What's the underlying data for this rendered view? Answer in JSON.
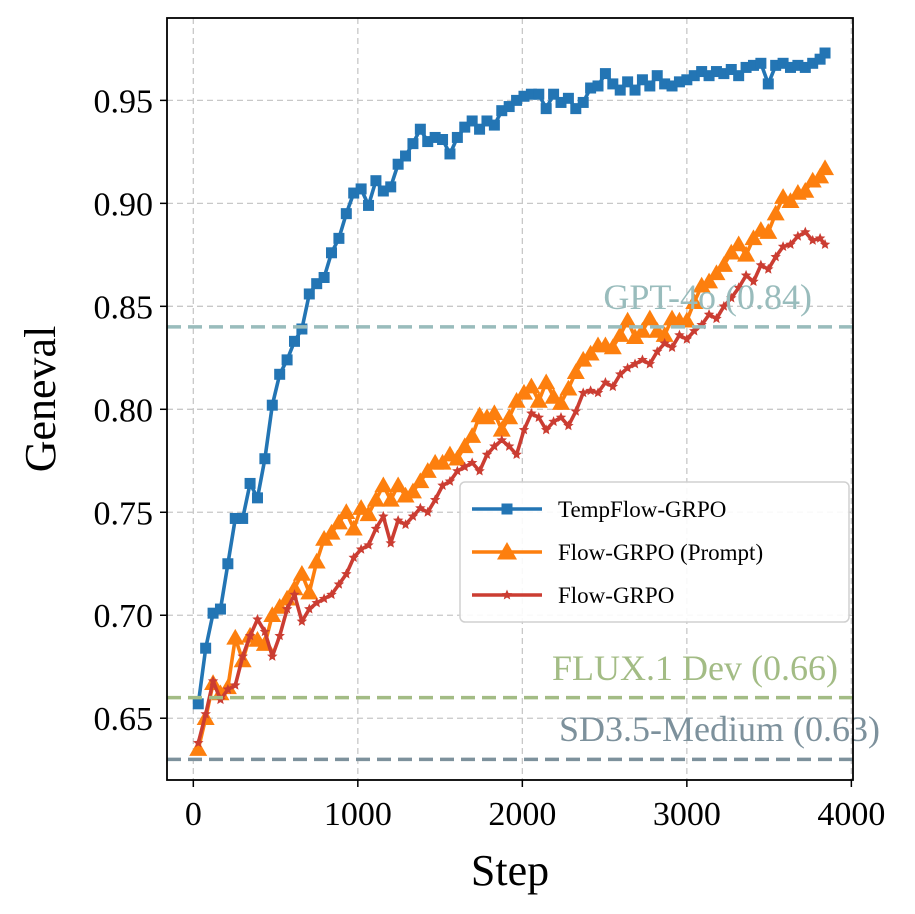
{
  "chart_data": {
    "type": "line",
    "title": "",
    "xlabel": "Step",
    "ylabel": "Geneval",
    "xlim": [
      -160,
      4010
    ],
    "ylim": [
      0.62,
      0.99
    ],
    "xticks": [
      0,
      1000,
      2000,
      3000,
      4000
    ],
    "xtick_labels": [
      "0",
      "1000",
      "2000",
      "3000",
      "4000"
    ],
    "yticks": [
      0.65,
      0.7,
      0.75,
      0.8,
      0.85,
      0.9,
      0.95
    ],
    "ytick_labels": [
      "0.65",
      "0.70",
      "0.75",
      "0.80",
      "0.85",
      "0.90",
      "0.95"
    ],
    "grid": true,
    "legend_position": "center-right",
    "reference_lines": [
      {
        "label": "GPT-4o (0.84)",
        "value": 0.84,
        "color": "#99bcbc"
      },
      {
        "label": "FLUX.1 Dev (0.66)",
        "value": 0.66,
        "color": "#a3bc85"
      },
      {
        "label": "SD3.5-Medium (0.63)",
        "value": 0.63,
        "color": "#7d919c"
      }
    ],
    "series": [
      {
        "name": "TempFlow-GRPO",
        "color": "#2375b4",
        "marker": "square",
        "x": [
          30,
          75,
          120,
          165,
          210,
          255,
          300,
          345,
          390,
          435,
          480,
          525,
          570,
          615,
          660,
          705,
          750,
          795,
          840,
          885,
          930,
          975,
          1020,
          1065,
          1110,
          1155,
          1200,
          1245,
          1290,
          1335,
          1380,
          1425,
          1470,
          1515,
          1560,
          1605,
          1650,
          1695,
          1740,
          1785,
          1830,
          1875,
          1920,
          1965,
          2010,
          2055,
          2100,
          2145,
          2190,
          2235,
          2280,
          2325,
          2370,
          2415,
          2460,
          2505,
          2550,
          2595,
          2640,
          2685,
          2730,
          2775,
          2820,
          2865,
          2910,
          2955,
          3000,
          3045,
          3090,
          3135,
          3180,
          3225,
          3270,
          3315,
          3360,
          3405,
          3450,
          3495,
          3540,
          3585,
          3630,
          3675,
          3720,
          3765,
          3810,
          3840
        ],
        "values": [
          0.657,
          0.684,
          0.701,
          0.703,
          0.725,
          0.747,
          0.747,
          0.764,
          0.757,
          0.776,
          0.802,
          0.817,
          0.824,
          0.833,
          0.839,
          0.856,
          0.861,
          0.864,
          0.876,
          0.883,
          0.895,
          0.905,
          0.907,
          0.899,
          0.911,
          0.906,
          0.908,
          0.919,
          0.923,
          0.929,
          0.936,
          0.93,
          0.932,
          0.931,
          0.924,
          0.932,
          0.937,
          0.94,
          0.936,
          0.94,
          0.938,
          0.945,
          0.947,
          0.95,
          0.952,
          0.953,
          0.953,
          0.946,
          0.953,
          0.949,
          0.951,
          0.946,
          0.949,
          0.956,
          0.957,
          0.963,
          0.958,
          0.955,
          0.959,
          0.955,
          0.96,
          0.957,
          0.962,
          0.958,
          0.957,
          0.959,
          0.96,
          0.962,
          0.964,
          0.962,
          0.964,
          0.963,
          0.965,
          0.962,
          0.966,
          0.967,
          0.968,
          0.958,
          0.967,
          0.968,
          0.966,
          0.967,
          0.966,
          0.968,
          0.97,
          0.973
        ]
      },
      {
        "name": "Flow-GRPO (Prompt)",
        "color": "#fd7f0e",
        "marker": "triangle",
        "x": [
          30,
          75,
          120,
          165,
          210,
          255,
          300,
          345,
          390,
          435,
          480,
          525,
          570,
          615,
          660,
          705,
          750,
          795,
          840,
          885,
          930,
          975,
          1020,
          1065,
          1110,
          1155,
          1200,
          1245,
          1290,
          1335,
          1380,
          1425,
          1470,
          1515,
          1560,
          1605,
          1650,
          1695,
          1740,
          1785,
          1830,
          1875,
          1920,
          1965,
          2010,
          2055,
          2100,
          2145,
          2190,
          2235,
          2280,
          2325,
          2370,
          2415,
          2460,
          2505,
          2550,
          2595,
          2640,
          2685,
          2730,
          2775,
          2820,
          2865,
          2910,
          2955,
          3000,
          3045,
          3090,
          3135,
          3180,
          3225,
          3270,
          3315,
          3360,
          3405,
          3450,
          3495,
          3540,
          3585,
          3630,
          3675,
          3720,
          3765,
          3810,
          3840
        ],
        "values": [
          0.635,
          0.65,
          0.667,
          0.662,
          0.665,
          0.689,
          0.678,
          0.69,
          0.688,
          0.686,
          0.7,
          0.704,
          0.708,
          0.713,
          0.72,
          0.711,
          0.726,
          0.737,
          0.74,
          0.745,
          0.75,
          0.742,
          0.752,
          0.749,
          0.756,
          0.763,
          0.756,
          0.763,
          0.758,
          0.76,
          0.765,
          0.77,
          0.774,
          0.774,
          0.778,
          0.776,
          0.782,
          0.787,
          0.797,
          0.796,
          0.798,
          0.79,
          0.796,
          0.804,
          0.808,
          0.811,
          0.804,
          0.813,
          0.806,
          0.803,
          0.81,
          0.818,
          0.824,
          0.827,
          0.831,
          0.831,
          0.83,
          0.836,
          0.843,
          0.835,
          0.838,
          0.844,
          0.838,
          0.836,
          0.844,
          0.843,
          0.843,
          0.852,
          0.86,
          0.862,
          0.866,
          0.87,
          0.876,
          0.88,
          0.875,
          0.883,
          0.887,
          0.886,
          0.895,
          0.903,
          0.901,
          0.905,
          0.906,
          0.911,
          0.913,
          0.917
        ]
      },
      {
        "name": "Flow-GRPO",
        "color": "#cb3d32",
        "marker": "star",
        "x": [
          30,
          75,
          120,
          165,
          210,
          255,
          300,
          345,
          390,
          435,
          480,
          525,
          570,
          615,
          660,
          705,
          750,
          795,
          840,
          885,
          930,
          975,
          1020,
          1065,
          1110,
          1155,
          1200,
          1245,
          1290,
          1335,
          1380,
          1425,
          1470,
          1515,
          1560,
          1605,
          1650,
          1695,
          1740,
          1785,
          1830,
          1875,
          1920,
          1965,
          2010,
          2055,
          2100,
          2145,
          2190,
          2235,
          2280,
          2325,
          2370,
          2415,
          2460,
          2505,
          2550,
          2595,
          2640,
          2685,
          2730,
          2775,
          2820,
          2865,
          2910,
          2955,
          3000,
          3045,
          3090,
          3135,
          3180,
          3225,
          3270,
          3315,
          3360,
          3405,
          3450,
          3495,
          3540,
          3585,
          3630,
          3675,
          3720,
          3765,
          3810,
          3840
        ],
        "values": [
          0.638,
          0.652,
          0.668,
          0.659,
          0.664,
          0.666,
          0.68,
          0.69,
          0.698,
          0.692,
          0.68,
          0.69,
          0.703,
          0.71,
          0.697,
          0.703,
          0.706,
          0.708,
          0.71,
          0.715,
          0.72,
          0.728,
          0.732,
          0.734,
          0.742,
          0.748,
          0.735,
          0.746,
          0.744,
          0.748,
          0.752,
          0.75,
          0.756,
          0.763,
          0.765,
          0.77,
          0.772,
          0.774,
          0.77,
          0.778,
          0.782,
          0.785,
          0.782,
          0.778,
          0.79,
          0.798,
          0.796,
          0.79,
          0.794,
          0.796,
          0.792,
          0.799,
          0.808,
          0.809,
          0.808,
          0.813,
          0.811,
          0.817,
          0.82,
          0.822,
          0.824,
          0.822,
          0.828,
          0.832,
          0.83,
          0.836,
          0.834,
          0.838,
          0.841,
          0.846,
          0.844,
          0.85,
          0.854,
          0.859,
          0.865,
          0.862,
          0.87,
          0.868,
          0.874,
          0.879,
          0.88,
          0.884,
          0.886,
          0.882,
          0.883,
          0.88
        ]
      }
    ]
  }
}
